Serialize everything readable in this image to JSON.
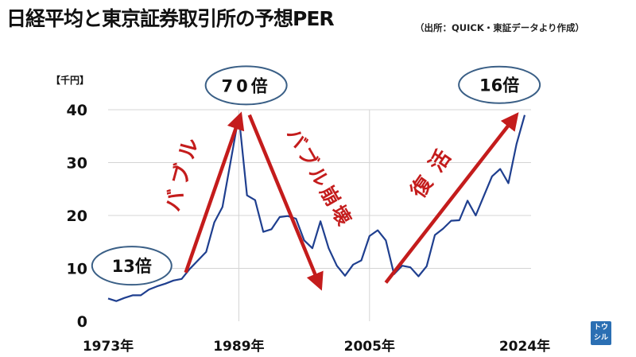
{
  "title": "日経平均と東京証券取引所の予想PER",
  "source": "（出所：QUICK・東証データより作成）",
  "logo_text": [
    "トウ",
    "シル"
  ],
  "colors": {
    "line": "#1f3f8f",
    "arrow": "#c41c1c",
    "ellipse": "#3a5f86",
    "grid": "#d4d4d4",
    "text": "#111111"
  },
  "chart_data": {
    "type": "line",
    "title": "日経平均と東京証券取引所の予想PER",
    "ylabel": "【千円】",
    "ylim": [
      0,
      40
    ],
    "yticks": [
      0,
      10,
      20,
      30,
      40
    ],
    "xlim": [
      1973,
      2024
    ],
    "xtick_labels": [
      "1973年",
      "1989年",
      "2005年",
      "2024年"
    ],
    "xtick_values": [
      1973,
      1989,
      2005,
      2024
    ],
    "grid": true,
    "series": [
      {
        "x": [
          1973,
          1974,
          1975,
          1976,
          1977,
          1978,
          1979,
          1980,
          1981,
          1982,
          1983,
          1984,
          1985,
          1986,
          1987,
          1988,
          1989,
          1990,
          1991,
          1992,
          1993,
          1994,
          1995,
          1996,
          1997,
          1998,
          1999,
          2000,
          2001,
          2002,
          2003,
          2004,
          2005,
          2006,
          2007,
          2008,
          2009,
          2010,
          2011,
          2012,
          2013,
          2014,
          2015,
          2016,
          2017,
          2018,
          2019,
          2020,
          2021,
          2022,
          2023,
          2024
        ],
        "values": [
          4.3,
          3.8,
          4.4,
          4.9,
          4.9,
          6.0,
          6.6,
          7.1,
          7.7,
          8.0,
          9.9,
          11.5,
          13.1,
          18.7,
          21.6,
          30.2,
          38.9,
          23.8,
          22.9,
          16.9,
          17.4,
          19.7,
          19.9,
          19.4,
          15.3,
          13.8,
          18.9,
          13.8,
          10.5,
          8.6,
          10.7,
          11.5,
          16.1,
          17.2,
          15.3,
          8.9,
          10.5,
          10.2,
          8.5,
          10.4,
          16.3,
          17.5,
          19.0,
          19.1,
          22.8,
          20.0,
          23.7,
          27.4,
          28.8,
          26.1,
          33.5,
          39.0
        ]
      }
    ],
    "annotations": [
      {
        "text": "13倍",
        "at": [
          1975.9,
          10.5
        ]
      },
      {
        "text": "70倍",
        "at": [
          1989.9,
          44.6
        ]
      },
      {
        "text": "16倍",
        "at": [
          2020.9,
          44.7
        ]
      }
    ],
    "arrow_labels": [
      "バブル",
      "バブル崩壊",
      "復活"
    ],
    "arrows": [
      {
        "from": [
          1982.5,
          9.2
        ],
        "to": [
          1989.2,
          39.0
        ]
      },
      {
        "from": [
          1990.3,
          39.0
        ],
        "to": [
          1999.0,
          6.4
        ]
      },
      {
        "from": [
          2007.0,
          7.3
        ],
        "to": [
          2023.0,
          39.0
        ]
      }
    ]
  }
}
